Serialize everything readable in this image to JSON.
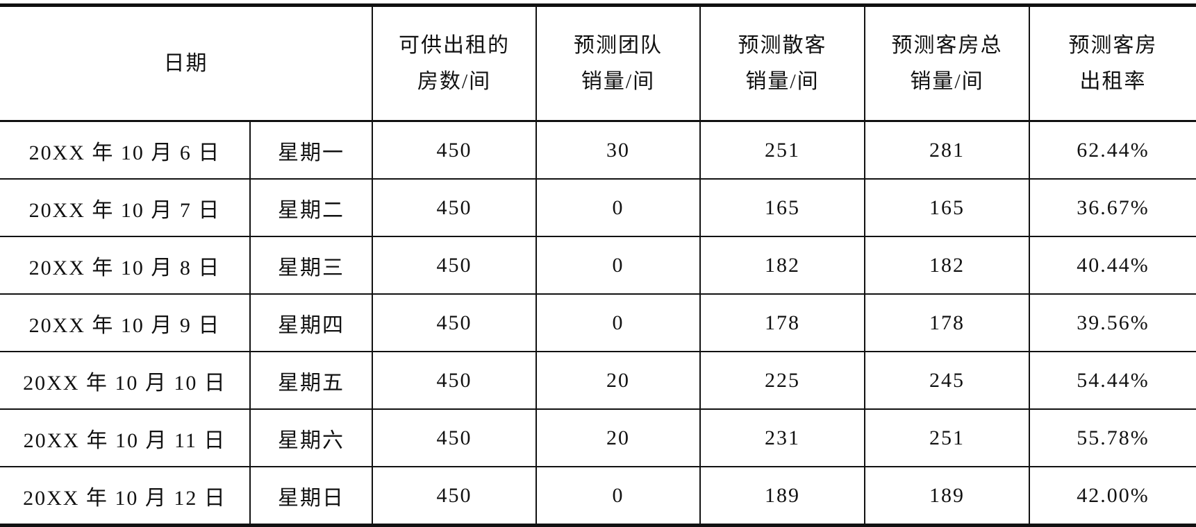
{
  "table": {
    "headers": [
      "日期",
      "可供出租的\n房数/间",
      "预测团队\n销量/间",
      "预测散客\n销量/间",
      "预测客房总\n销量/间",
      "预测客房\n出租率"
    ],
    "header_lines": [
      [
        "日期"
      ],
      [
        "可供出租的",
        "房数/间"
      ],
      [
        "预测团队",
        "销量/间"
      ],
      [
        "预测散客",
        "销量/间"
      ],
      [
        "预测客房总",
        "销量/间"
      ],
      [
        "预测客房",
        "出租率"
      ]
    ],
    "rows": [
      [
        "20XX 年 10 月 6 日",
        "星期一",
        "450",
        "30",
        "251",
        "281",
        "62.44%"
      ],
      [
        "20XX 年 10 月 7 日",
        "星期二",
        "450",
        "0",
        "165",
        "165",
        "36.67%"
      ],
      [
        "20XX 年 10 月 8 日",
        "星期三",
        "450",
        "0",
        "182",
        "182",
        "40.44%"
      ],
      [
        "20XX 年 10 月 9 日",
        "星期四",
        "450",
        "0",
        "178",
        "178",
        "39.56%"
      ],
      [
        "20XX 年 10 月 10 日",
        "星期五",
        "450",
        "20",
        "225",
        "245",
        "54.44%"
      ],
      [
        "20XX 年 10 月 11 日",
        "星期六",
        "450",
        "20",
        "231",
        "251",
        "55.78%"
      ],
      [
        "20XX 年 10 月 12 日",
        "星期日",
        "450",
        "0",
        "189",
        "189",
        "42.00%"
      ]
    ]
  }
}
